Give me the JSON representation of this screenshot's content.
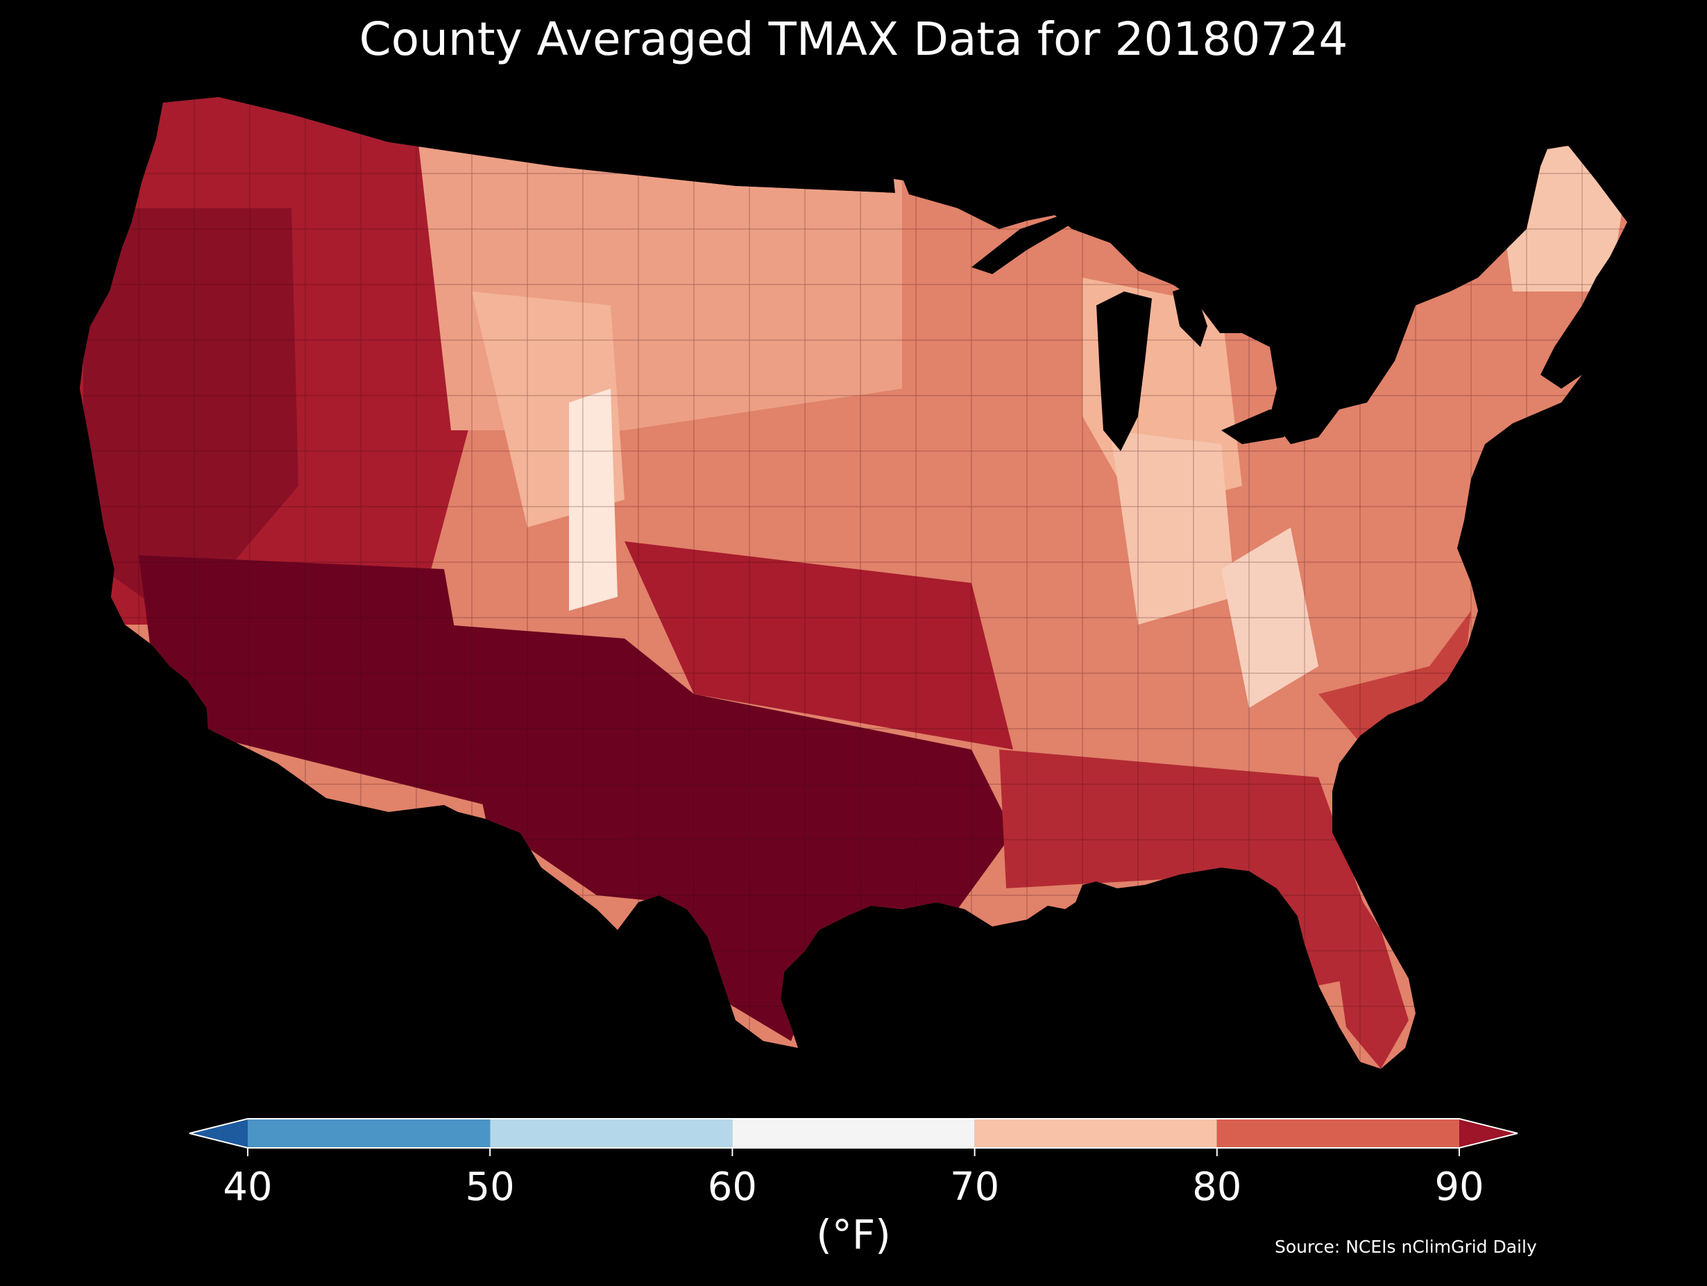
{
  "title": "County Averaged TMAX Data for 20180724",
  "colorbar": {
    "ticks": [
      "40",
      "50",
      "60",
      "70",
      "80",
      "90"
    ],
    "units": "(°F)",
    "bins": [
      {
        "from": 40,
        "to": 50,
        "color": "#4a94c6"
      },
      {
        "from": 50,
        "to": 60,
        "color": "#b5d7ea"
      },
      {
        "from": 60,
        "to": 70,
        "color": "#f4f4f4"
      },
      {
        "from": 70,
        "to": 80,
        "color": "#f7c2a7"
      },
      {
        "from": 80,
        "to": 90,
        "color": "#d9604f"
      }
    ],
    "under_color": "#1d5a9e",
    "over_color": "#9e1428"
  },
  "source": "Source: NCEIs nClimGrid Daily",
  "map": {
    "region": "contiguous United States (county polygons)",
    "background": "#000000",
    "great_lakes_color": "#000000"
  },
  "colors": {
    "hot_south": "#6b0320",
    "warm_west": "#a81c2e",
    "mid": "#d9604f",
    "cool_north": "#ec9f84",
    "coolest": "#fde6da"
  }
}
